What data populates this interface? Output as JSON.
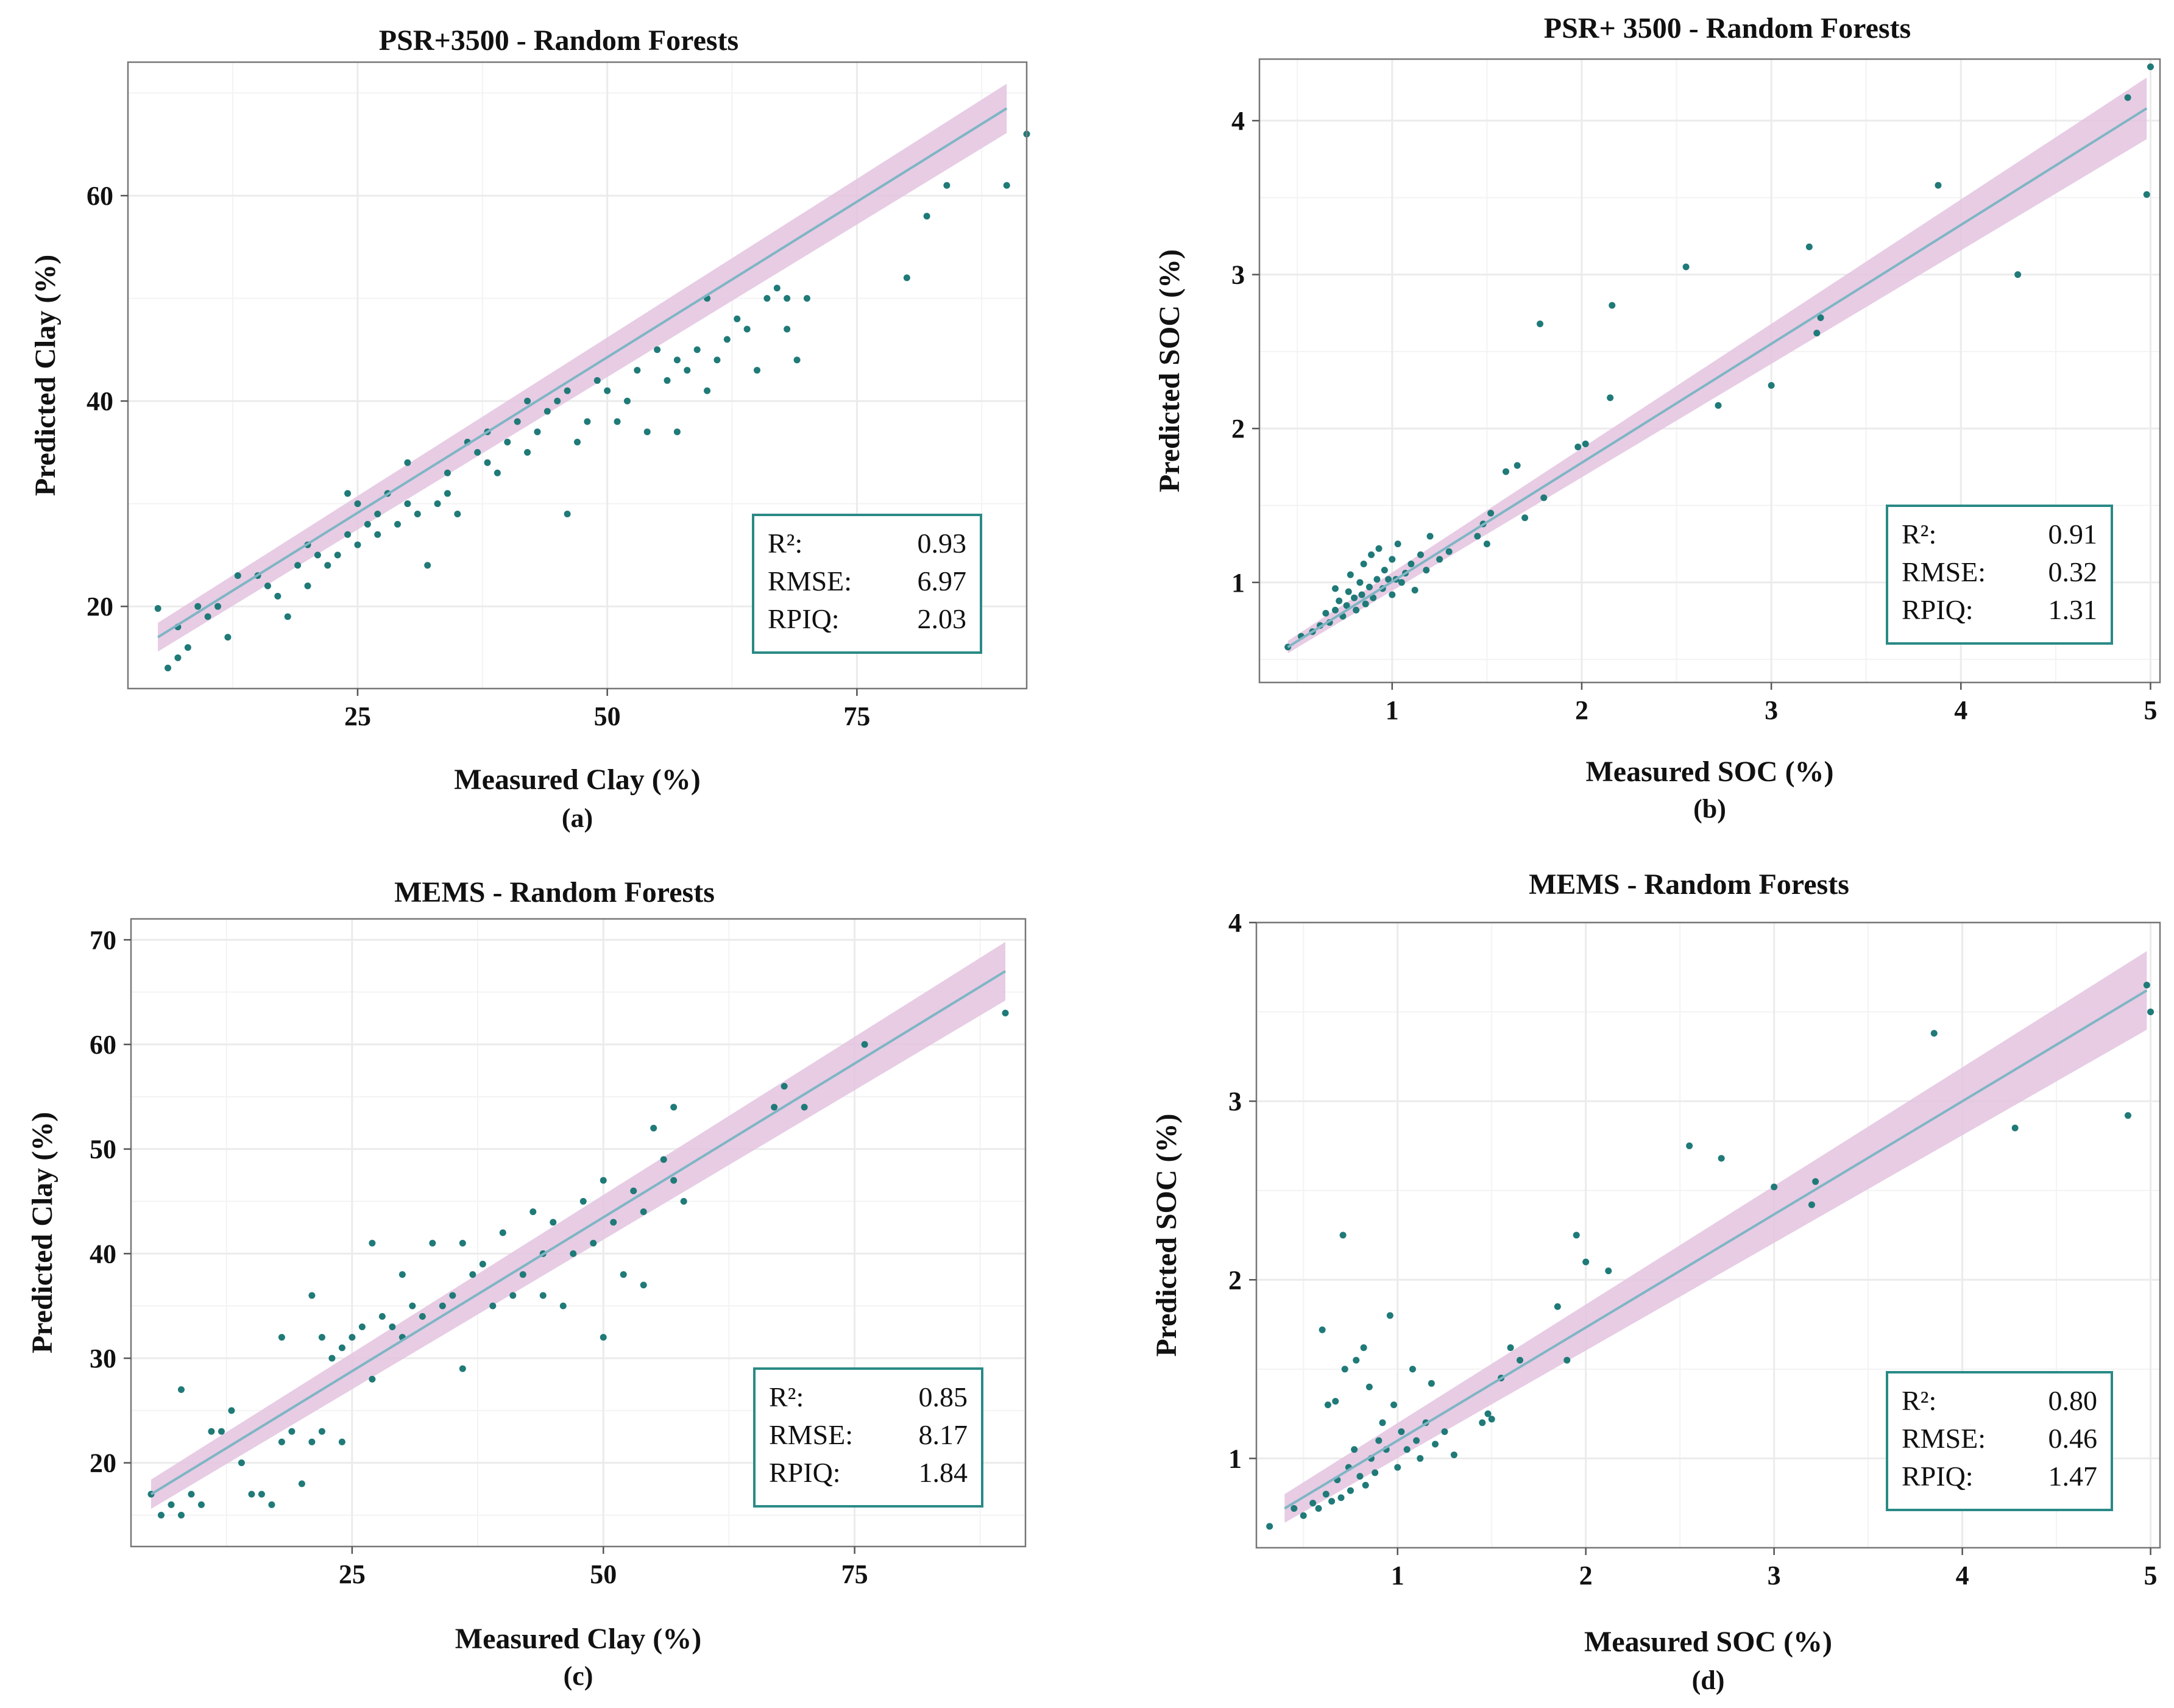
{
  "colors": {
    "point": "#1f7a78",
    "line": "#7fb5c4",
    "band": "#e3c3df",
    "box": "#2a8a86",
    "grid": "#ebebeb",
    "frame": "#777777"
  },
  "chart_data": [
    {
      "type": "scatter",
      "title": "PSR+3500 - Random Forests",
      "xlabel": "Measured Clay (%)",
      "ylabel": "Predicted Clay (%)",
      "sublabel": "(a)",
      "xlim": [
        2,
        92
      ],
      "ylim": [
        12,
        73
      ],
      "xticks": [
        25,
        50,
        75
      ],
      "xtick_labels": [
        "25",
        "50",
        "75"
      ],
      "yticks": [
        20,
        40,
        60
      ],
      "ytick_labels": [
        "20",
        "40",
        "60"
      ],
      "fit": {
        "x": [
          5,
          90
        ],
        "y": [
          17,
          68.5
        ],
        "band": [
          1.4,
          2.4
        ]
      },
      "stats": {
        "r2_label": "R²:",
        "r2": "0.93",
        "rmse_label": "RMSE:",
        "rmse": "6.97",
        "rpiq_label": "RPIQ:",
        "rpiq": "2.03"
      },
      "points": [
        [
          5,
          19.8
        ],
        [
          6,
          14
        ],
        [
          7,
          15
        ],
        [
          7,
          18
        ],
        [
          8,
          16
        ],
        [
          9,
          20
        ],
        [
          10,
          19
        ],
        [
          11,
          20
        ],
        [
          12,
          17
        ],
        [
          13,
          23
        ],
        [
          15,
          23
        ],
        [
          16,
          22
        ],
        [
          17,
          21
        ],
        [
          18,
          19
        ],
        [
          19,
          24
        ],
        [
          20,
          22
        ],
        [
          20,
          26
        ],
        [
          21,
          25
        ],
        [
          22,
          24
        ],
        [
          23,
          25
        ],
        [
          24,
          27
        ],
        [
          24,
          31
        ],
        [
          25,
          26
        ],
        [
          25,
          30
        ],
        [
          26,
          28
        ],
        [
          27,
          27
        ],
        [
          27,
          29
        ],
        [
          28,
          31
        ],
        [
          29,
          28
        ],
        [
          30,
          30
        ],
        [
          30,
          34
        ],
        [
          31,
          29
        ],
        [
          32,
          24
        ],
        [
          33,
          30
        ],
        [
          34,
          31
        ],
        [
          34,
          33
        ],
        [
          35,
          29
        ],
        [
          36,
          36
        ],
        [
          37,
          35
        ],
        [
          38,
          34
        ],
        [
          38,
          37
        ],
        [
          39,
          33
        ],
        [
          40,
          36
        ],
        [
          41,
          38
        ],
        [
          42,
          35
        ],
        [
          42,
          40
        ],
        [
          43,
          37
        ],
        [
          44,
          39
        ],
        [
          45,
          40
        ],
        [
          46,
          29
        ],
        [
          46,
          41
        ],
        [
          47,
          36
        ],
        [
          48,
          38
        ],
        [
          49,
          42
        ],
        [
          50,
          41
        ],
        [
          51,
          38
        ],
        [
          52,
          40
        ],
        [
          53,
          43
        ],
        [
          54,
          37
        ],
        [
          55,
          45
        ],
        [
          56,
          42
        ],
        [
          57,
          44
        ],
        [
          57,
          37
        ],
        [
          58,
          43
        ],
        [
          59,
          45
        ],
        [
          60,
          41
        ],
        [
          60,
          50
        ],
        [
          61,
          44
        ],
        [
          62,
          46
        ],
        [
          63,
          48
        ],
        [
          64,
          47
        ],
        [
          65,
          43
        ],
        [
          66,
          50
        ],
        [
          67,
          51
        ],
        [
          68,
          50
        ],
        [
          68,
          47
        ],
        [
          69,
          44
        ],
        [
          70,
          50
        ],
        [
          80,
          52
        ],
        [
          82,
          58
        ],
        [
          84,
          61
        ],
        [
          90,
          61
        ],
        [
          92,
          66
        ]
      ]
    },
    {
      "type": "scatter",
      "title": "PSR+ 3500 - Random Forests",
      "xlabel": "Measured SOC (%)",
      "ylabel": "Predicted SOC (%)",
      "sublabel": "(b)",
      "xlim": [
        0.3,
        5.05
      ],
      "ylim": [
        0.35,
        4.4
      ],
      "xticks": [
        1,
        2,
        3,
        4,
        5
      ],
      "xtick_labels": [
        "1",
        "2",
        "3",
        "4",
        "5"
      ],
      "yticks": [
        1,
        2,
        3,
        4
      ],
      "ytick_labels": [
        "1",
        "2",
        "3",
        "4"
      ],
      "fit": {
        "x": [
          0.45,
          4.98
        ],
        "y": [
          0.58,
          4.08
        ],
        "band": [
          0.04,
          0.2
        ]
      },
      "stats": {
        "r2_label": "R²:",
        "r2": "0.91",
        "rmse_label": "RMSE:",
        "rmse": "0.32",
        "rpiq_label": "RPIQ:",
        "rpiq": "1.31"
      },
      "points": [
        [
          0.45,
          0.58
        ],
        [
          0.52,
          0.65
        ],
        [
          0.58,
          0.68
        ],
        [
          0.62,
          0.72
        ],
        [
          0.65,
          0.8
        ],
        [
          0.67,
          0.74
        ],
        [
          0.7,
          0.82
        ],
        [
          0.7,
          0.96
        ],
        [
          0.72,
          0.88
        ],
        [
          0.74,
          0.78
        ],
        [
          0.76,
          0.85
        ],
        [
          0.77,
          0.94
        ],
        [
          0.78,
          1.05
        ],
        [
          0.8,
          0.9
        ],
        [
          0.81,
          0.82
        ],
        [
          0.83,
          1.0
        ],
        [
          0.84,
          0.92
        ],
        [
          0.85,
          1.12
        ],
        [
          0.86,
          0.86
        ],
        [
          0.88,
          0.97
        ],
        [
          0.89,
          1.18
        ],
        [
          0.9,
          0.9
        ],
        [
          0.92,
          1.02
        ],
        [
          0.93,
          1.22
        ],
        [
          0.95,
          0.96
        ],
        [
          0.96,
          1.08
        ],
        [
          0.98,
          1.02
        ],
        [
          1.0,
          1.15
        ],
        [
          1.0,
          0.92
        ],
        [
          1.02,
          1.02
        ],
        [
          1.03,
          1.25
        ],
        [
          1.05,
          1.0
        ],
        [
          1.07,
          1.06
        ],
        [
          1.1,
          1.12
        ],
        [
          1.12,
          0.95
        ],
        [
          1.15,
          1.18
        ],
        [
          1.18,
          1.08
        ],
        [
          1.2,
          1.3
        ],
        [
          1.25,
          1.15
        ],
        [
          1.3,
          1.2
        ],
        [
          1.45,
          1.3
        ],
        [
          1.48,
          1.38
        ],
        [
          1.5,
          1.25
        ],
        [
          1.52,
          1.45
        ],
        [
          1.6,
          1.72
        ],
        [
          1.66,
          1.76
        ],
        [
          1.7,
          1.42
        ],
        [
          1.78,
          2.68
        ],
        [
          1.8,
          1.55
        ],
        [
          1.98,
          1.88
        ],
        [
          2.02,
          1.9
        ],
        [
          2.15,
          2.2
        ],
        [
          2.16,
          2.8
        ],
        [
          2.55,
          3.05
        ],
        [
          2.72,
          2.15
        ],
        [
          3.0,
          2.28
        ],
        [
          3.2,
          3.18
        ],
        [
          3.24,
          2.62
        ],
        [
          3.26,
          2.72
        ],
        [
          3.88,
          3.58
        ],
        [
          4.3,
          3.0
        ],
        [
          4.88,
          4.15
        ],
        [
          4.98,
          3.52
        ],
        [
          5.0,
          4.35
        ]
      ]
    },
    {
      "type": "scatter",
      "title": "MEMS - Random Forests",
      "xlabel": "Measured Clay (%)",
      "ylabel": "Predicted Clay (%)",
      "sublabel": "(c)",
      "xlim": [
        3,
        92
      ],
      "ylim": [
        12,
        72
      ],
      "xticks": [
        25,
        50,
        75
      ],
      "xtick_labels": [
        "25",
        "50",
        "75"
      ],
      "yticks": [
        20,
        30,
        40,
        50,
        60,
        70
      ],
      "ytick_labels": [
        "20",
        "30",
        "40",
        "50",
        "60",
        "70"
      ],
      "fit": {
        "x": [
          5,
          90
        ],
        "y": [
          17,
          67
        ],
        "band": [
          1.4,
          2.8
        ]
      },
      "stats": {
        "r2_label": "R²:",
        "r2": "0.85",
        "rmse_label": "RMSE:",
        "rmse": "8.17",
        "rpiq_label": "RPIQ:",
        "rpiq": "1.84"
      },
      "points": [
        [
          5,
          17
        ],
        [
          6,
          15
        ],
        [
          7,
          16
        ],
        [
          8,
          15
        ],
        [
          8,
          27
        ],
        [
          9,
          17
        ],
        [
          10,
          16
        ],
        [
          11,
          23
        ],
        [
          12,
          23
        ],
        [
          13,
          25
        ],
        [
          14,
          20
        ],
        [
          15,
          17
        ],
        [
          16,
          17
        ],
        [
          17,
          16
        ],
        [
          18,
          22
        ],
        [
          18,
          32
        ],
        [
          19,
          23
        ],
        [
          20,
          18
        ],
        [
          21,
          22
        ],
        [
          21,
          36
        ],
        [
          22,
          23
        ],
        [
          22,
          32
        ],
        [
          23,
          30
        ],
        [
          24,
          22
        ],
        [
          24,
          31
        ],
        [
          25,
          32
        ],
        [
          26,
          33
        ],
        [
          27,
          28
        ],
        [
          27,
          41
        ],
        [
          28,
          34
        ],
        [
          29,
          33
        ],
        [
          30,
          32
        ],
        [
          30,
          38
        ],
        [
          31,
          35
        ],
        [
          32,
          34
        ],
        [
          33,
          41
        ],
        [
          34,
          35
        ],
        [
          35,
          36
        ],
        [
          36,
          29
        ],
        [
          36,
          41
        ],
        [
          37,
          38
        ],
        [
          38,
          39
        ],
        [
          39,
          35
        ],
        [
          40,
          42
        ],
        [
          41,
          36
        ],
        [
          42,
          38
        ],
        [
          43,
          44
        ],
        [
          44,
          40
        ],
        [
          44,
          36
        ],
        [
          45,
          43
        ],
        [
          46,
          35
        ],
        [
          47,
          40
        ],
        [
          48,
          45
        ],
        [
          49,
          41
        ],
        [
          50,
          32
        ],
        [
          50,
          47
        ],
        [
          51,
          43
        ],
        [
          52,
          38
        ],
        [
          53,
          46
        ],
        [
          54,
          44
        ],
        [
          54,
          37
        ],
        [
          55,
          52
        ],
        [
          56,
          49
        ],
        [
          57,
          54
        ],
        [
          57,
          47
        ],
        [
          58,
          45
        ],
        [
          67,
          54
        ],
        [
          68,
          56
        ],
        [
          70,
          54
        ],
        [
          76,
          60
        ],
        [
          90,
          63
        ]
      ]
    },
    {
      "type": "scatter",
      "title": "MEMS - Random Forests",
      "xlabel": "Measured SOC (%)",
      "ylabel": "Predicted SOC (%)",
      "sublabel": "(d)",
      "xlim": [
        0.25,
        5.05
      ],
      "ylim": [
        0.5,
        4.0
      ],
      "xticks": [
        1,
        2,
        3,
        4,
        5
      ],
      "xtick_labels": [
        "1",
        "2",
        "3",
        "4",
        "5"
      ],
      "yticks": [
        1,
        2,
        3,
        4
      ],
      "ytick_labels": [
        "1",
        "2",
        "3",
        "4"
      ],
      "fit": {
        "x": [
          0.4,
          4.98
        ],
        "y": [
          0.72,
          3.62
        ],
        "band": [
          0.08,
          0.22
        ]
      },
      "stats": {
        "r2_label": "R²:",
        "r2": "0.80",
        "rmse_label": "RMSE:",
        "rmse": "0.46",
        "rpiq_label": "RPIQ:",
        "rpiq": "1.47"
      },
      "points": [
        [
          0.32,
          0.62
        ],
        [
          0.45,
          0.72
        ],
        [
          0.5,
          0.68
        ],
        [
          0.55,
          0.75
        ],
        [
          0.58,
          0.72
        ],
        [
          0.6,
          1.72
        ],
        [
          0.62,
          0.8
        ],
        [
          0.63,
          1.3
        ],
        [
          0.65,
          0.76
        ],
        [
          0.67,
          1.32
        ],
        [
          0.68,
          0.88
        ],
        [
          0.7,
          0.78
        ],
        [
          0.71,
          2.25
        ],
        [
          0.72,
          1.5
        ],
        [
          0.74,
          0.95
        ],
        [
          0.75,
          0.82
        ],
        [
          0.77,
          1.05
        ],
        [
          0.78,
          1.55
        ],
        [
          0.8,
          0.9
        ],
        [
          0.82,
          1.62
        ],
        [
          0.83,
          0.85
        ],
        [
          0.85,
          1.4
        ],
        [
          0.86,
          1.0
        ],
        [
          0.88,
          0.92
        ],
        [
          0.9,
          1.1
        ],
        [
          0.92,
          1.2
        ],
        [
          0.94,
          1.05
        ],
        [
          0.96,
          1.8
        ],
        [
          0.98,
          1.3
        ],
        [
          1.0,
          0.95
        ],
        [
          1.02,
          1.15
        ],
        [
          1.05,
          1.05
        ],
        [
          1.08,
          1.5
        ],
        [
          1.1,
          1.1
        ],
        [
          1.12,
          1.0
        ],
        [
          1.15,
          1.2
        ],
        [
          1.18,
          1.42
        ],
        [
          1.2,
          1.08
        ],
        [
          1.25,
          1.15
        ],
        [
          1.3,
          1.02
        ],
        [
          1.45,
          1.2
        ],
        [
          1.48,
          1.25
        ],
        [
          1.5,
          1.22
        ],
        [
          1.55,
          1.45
        ],
        [
          1.6,
          1.62
        ],
        [
          1.65,
          1.55
        ],
        [
          1.85,
          1.85
        ],
        [
          1.9,
          1.55
        ],
        [
          1.95,
          2.25
        ],
        [
          2.0,
          2.1
        ],
        [
          2.12,
          2.05
        ],
        [
          2.55,
          2.75
        ],
        [
          2.72,
          2.68
        ],
        [
          3.0,
          2.52
        ],
        [
          3.2,
          2.42
        ],
        [
          3.22,
          2.55
        ],
        [
          3.85,
          3.38
        ],
        [
          4.28,
          2.85
        ],
        [
          4.88,
          2.92
        ],
        [
          4.98,
          3.65
        ],
        [
          5.0,
          3.5
        ]
      ]
    }
  ]
}
